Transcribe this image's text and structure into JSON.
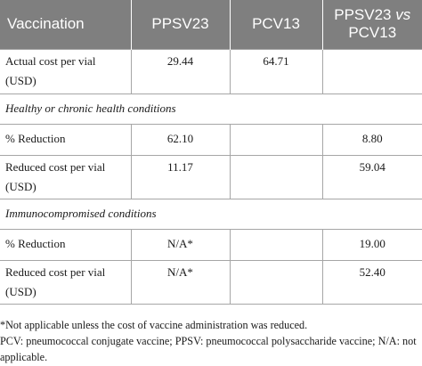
{
  "table": {
    "headers": {
      "col0": "Vaccination",
      "col1": "PPSV23",
      "col2": "PCV13",
      "col3_a": "PPSV23",
      "col3_vs": "vs",
      "col3_b": "PCV13"
    },
    "rows": {
      "actual": {
        "label": "Actual cost per vial (USD)",
        "ppsv23": "29.44",
        "pcv13": "64.71",
        "compare": ""
      },
      "section1": {
        "label": "Healthy or chronic health conditions"
      },
      "healthy_reduction": {
        "label": "% Reduction",
        "ppsv23": "62.10",
        "pcv13": "",
        "compare": "8.80"
      },
      "healthy_reduced": {
        "label": "Reduced cost per vial (USD)",
        "ppsv23": "11.17",
        "pcv13": "",
        "compare": "59.04"
      },
      "section2": {
        "label": "Immunocompromised conditions"
      },
      "immuno_reduction": {
        "label": "% Reduction",
        "ppsv23": "N/A*",
        "pcv13": "",
        "compare": "19.00"
      },
      "immuno_reduced": {
        "label": "Reduced cost per vial (USD)",
        "ppsv23": "N/A*",
        "pcv13": "",
        "compare": "52.40"
      }
    }
  },
  "footnotes": {
    "note1": "*Not applicable unless the cost of vaccine administration was reduced.",
    "note2": "PCV: pneumococcal conjugate vaccine; PPSV: pneumococcal polysaccharide vaccine; N/A: not applicable."
  }
}
